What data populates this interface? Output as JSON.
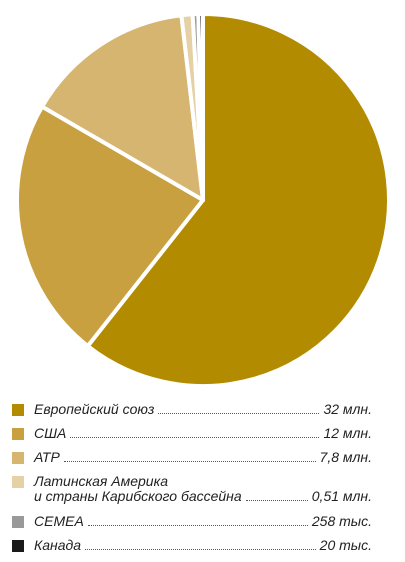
{
  "chart_data": {
    "type": "pie",
    "slices": [
      {
        "label": "Европейский союз",
        "value": 32,
        "value_label": "32 млн.",
        "color": "#b28b00"
      },
      {
        "label": "США",
        "value": 12,
        "value_label": "12 млн.",
        "color": "#c8a040"
      },
      {
        "label": "АТР",
        "value": 7.8,
        "value_label": "7,8 млн.",
        "color": "#d5b570"
      },
      {
        "label_lines": [
          "Латинская Америка",
          "и страны Карибского бассейна"
        ],
        "value": 0.51,
        "value_label": "0,51 млн.",
        "color": "#e6d0a5"
      },
      {
        "label": "СЕМЕА",
        "value": 0.258,
        "value_label": "258 тыс.",
        "color": "#999999"
      },
      {
        "label": "Канада",
        "value": 0.02,
        "value_label": "20 тыс.",
        "color": "#1a1a1a"
      }
    ]
  }
}
